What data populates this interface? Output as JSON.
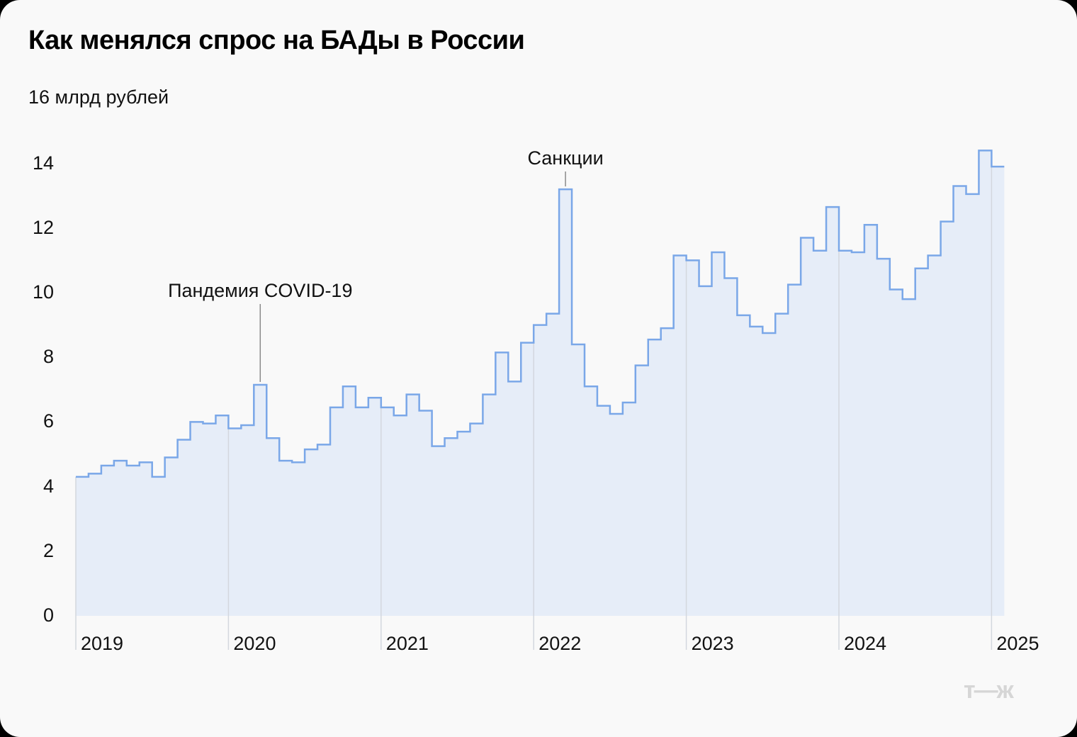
{
  "header": {
    "title": "Как менялся спрос на БАДы в России",
    "unit_label": "16 млрд рублей"
  },
  "colors": {
    "line": "#7aa7e8",
    "fill": "#e6edf8",
    "year_grid": "#d3d7de",
    "annotation_line": "#8a8a8a",
    "background": "#f9f9f9"
  },
  "logo": {
    "text": "т—ж"
  },
  "chart_data": {
    "type": "line",
    "subtype": "step-area",
    "title": "Как менялся спрос на БАДы в России",
    "ylabel": "млрд рублей",
    "ylim": [
      0,
      16
    ],
    "yticks": [
      0,
      2,
      4,
      6,
      8,
      10,
      12,
      14
    ],
    "xticks": [
      "2019",
      "2020",
      "2021",
      "2022",
      "2023",
      "2024",
      "2025"
    ],
    "grid": false,
    "legend": null,
    "frequency": "monthly",
    "start": "2019-01",
    "series": [
      {
        "name": "Спрос на БАДы, млрд рублей",
        "values": [
          4.3,
          4.4,
          4.65,
          4.8,
          4.65,
          4.75,
          4.3,
          4.9,
          5.45,
          6.0,
          5.95,
          6.2,
          5.8,
          5.9,
          7.15,
          5.5,
          4.8,
          4.75,
          5.15,
          5.3,
          6.45,
          7.1,
          6.45,
          6.75,
          6.45,
          6.2,
          6.85,
          6.35,
          5.25,
          5.5,
          5.7,
          5.95,
          6.85,
          8.15,
          7.25,
          8.45,
          9.0,
          9.35,
          13.2,
          8.4,
          7.1,
          6.5,
          6.25,
          6.6,
          7.75,
          8.55,
          8.9,
          11.15,
          11.0,
          10.2,
          11.25,
          10.45,
          9.3,
          8.95,
          8.75,
          9.35,
          10.25,
          11.7,
          11.3,
          12.65,
          11.3,
          11.25,
          12.1,
          11.05,
          10.1,
          9.8,
          10.75,
          11.15,
          12.2,
          13.3,
          13.05,
          14.4,
          13.9
        ]
      }
    ],
    "annotations": [
      {
        "text": "Пандемия COVID-19",
        "index": 14
      },
      {
        "text": "Санкции",
        "index": 38
      }
    ]
  }
}
